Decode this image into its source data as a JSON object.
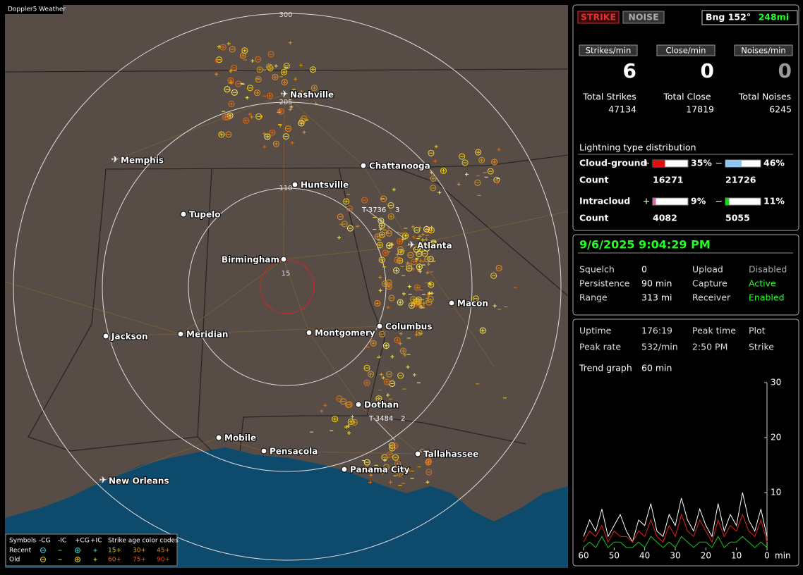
{
  "map": {
    "title": "Doppler5 Weather",
    "range_labels": [
      "300",
      "205",
      "110",
      "15"
    ],
    "cities": [
      "Nashville",
      "Memphis",
      "Chattanooga",
      "Huntsville",
      "Tupelo",
      "Birmingham",
      "Atlanta",
      "Macon",
      "Columbus",
      "Montgomery",
      "Meridian",
      "Jackson",
      "Dothan",
      "Mobile",
      "Pensacola",
      "Tallahassee",
      "Panama City",
      "New Orleans"
    ],
    "tracks": [
      {
        "id": "T-3736",
        "count": "3"
      },
      {
        "id": "T-3484",
        "count": "2"
      }
    ],
    "legend": {
      "symbols_label": "Symbols",
      "types": [
        "-CG",
        "-IC",
        "+CG",
        "+IC"
      ],
      "age_label": "Strike age color codes",
      "rows": [
        {
          "label": "Recent",
          "ages": [
            "15+",
            "30+",
            "45+"
          ]
        },
        {
          "label": "Old",
          "ages": [
            "60+",
            "75+",
            "90+"
          ]
        }
      ]
    }
  },
  "status": {
    "strike_button": "STRIKE",
    "noise_button": "NOISE",
    "bearing": "Bng 152°",
    "distance": "248mi"
  },
  "rates": {
    "headers": [
      "Strikes/min",
      "Close/min",
      "Noises/min"
    ],
    "values": [
      6,
      0,
      0
    ]
  },
  "totals": {
    "labels": [
      "Total Strikes",
      "Total Close",
      "Total Noises"
    ],
    "values": [
      47134,
      17819,
      6245
    ]
  },
  "distribution": {
    "title": "Lightning type distribution",
    "count_label": "Count",
    "rows": [
      {
        "name": "Cloud-ground",
        "positive_sign": "+",
        "negative_sign": "−",
        "positive": {
          "value": 35,
          "label": "35%"
        },
        "negative": {
          "value": 46,
          "label": "46%"
        },
        "positive_count": 16271,
        "negative_count": 21726
      },
      {
        "name": "Intracloud",
        "positive_sign": "+",
        "negative_sign": "−",
        "positive": {
          "value": 9,
          "label": "9%"
        },
        "negative": {
          "value": 11,
          "label": "11%"
        },
        "positive_count": 4082,
        "negative_count": 5055
      }
    ]
  },
  "clock": "9/6/2025 9:04:29 PM",
  "settings": [
    [
      "Squelch",
      0,
      "Upload",
      "Disabled"
    ],
    [
      "Persistence",
      "90 min",
      "Capture",
      "Active"
    ],
    [
      "Range",
      "313 mi",
      "Receiver",
      "Enabled"
    ]
  ],
  "info": [
    [
      "Uptime",
      "176:19",
      "Peak time",
      "Plot"
    ],
    [
      "Peak rate",
      "532/min",
      "2:50 PM",
      "Strike"
    ]
  ],
  "trend_label": "Trend graph",
  "trend_window": "60 min",
  "trend": {
    "type": "line",
    "x_label": "min",
    "x": [
      60,
      58,
      56,
      54,
      52,
      50,
      48,
      46,
      44,
      42,
      40,
      38,
      36,
      34,
      32,
      30,
      28,
      26,
      24,
      22,
      20,
      18,
      16,
      14,
      12,
      10,
      8,
      6,
      4,
      2,
      0
    ],
    "xlim": [
      60,
      0
    ],
    "ylim": [
      0,
      30
    ],
    "yticks": [
      10,
      20,
      30
    ],
    "xticks": [
      60,
      50,
      40,
      30,
      20,
      10,
      0
    ],
    "series": [
      {
        "color": "#ffffff",
        "values": [
          2,
          5,
          3,
          7,
          2,
          4,
          6,
          3,
          1,
          5,
          4,
          8,
          3,
          2,
          6,
          4,
          9,
          5,
          3,
          7,
          4,
          2,
          8,
          3,
          6,
          4,
          10,
          5,
          3,
          7,
          2
        ]
      },
      {
        "color": "#e02020",
        "values": [
          1,
          3,
          2,
          4,
          1,
          3,
          2,
          2,
          1,
          3,
          2,
          5,
          2,
          1,
          4,
          2,
          6,
          3,
          2,
          5,
          3,
          1,
          5,
          2,
          4,
          3,
          6,
          3,
          2,
          5,
          1
        ]
      },
      {
        "color": "#20c020",
        "values": [
          0,
          1,
          0,
          2,
          0,
          1,
          1,
          0,
          0,
          1,
          0,
          2,
          1,
          0,
          1,
          0,
          2,
          1,
          0,
          1,
          1,
          0,
          2,
          0,
          1,
          1,
          2,
          1,
          0,
          1,
          0
        ]
      }
    ]
  }
}
